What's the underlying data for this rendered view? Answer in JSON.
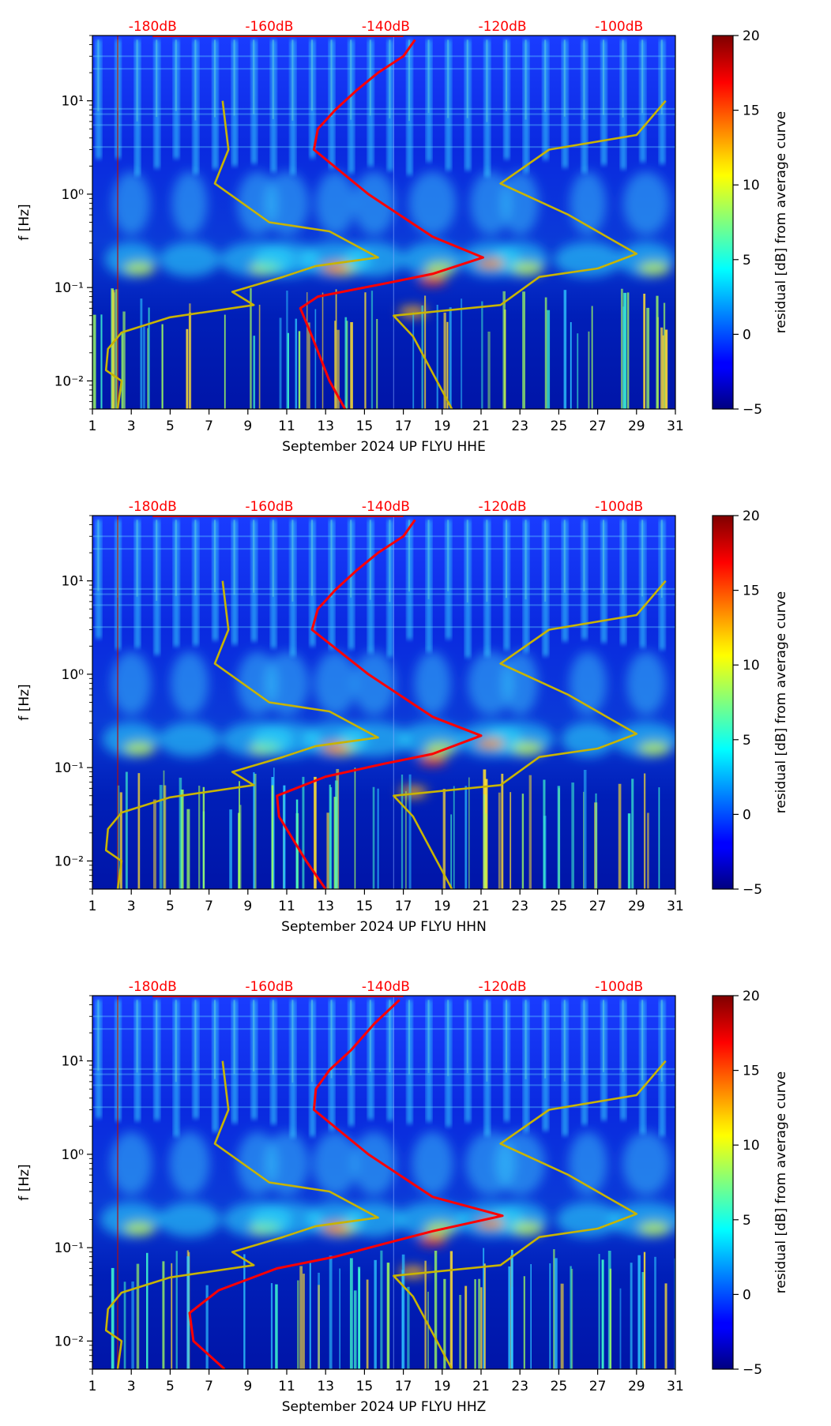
{
  "figure": {
    "colormap": "jet",
    "overlay_colors": {
      "noise_curve": "#ff0000",
      "model_curve": "#c8b400",
      "db_label": "#ff0000"
    }
  },
  "chart_data": [
    {
      "type": "heatmap",
      "xlabel": "September 2024 UP FLYU  HHE",
      "ylabel": "f [Hz]",
      "x_range": [
        1,
        31
      ],
      "x_ticks": [
        "1",
        "3",
        "5",
        "7",
        "9",
        "11",
        "13",
        "15",
        "17",
        "19",
        "21",
        "23",
        "25",
        "27",
        "29",
        "31"
      ],
      "y_scale": "log",
      "y_range": [
        0.005,
        50
      ],
      "y_ticks": [
        {
          "value": 0.01,
          "label": "10⁻²"
        },
        {
          "value": 0.1,
          "label": "10⁻¹"
        },
        {
          "value": 1,
          "label": "10⁰"
        },
        {
          "value": 10,
          "label": "10¹"
        }
      ],
      "db_scale": {
        "labels": [
          "-180dB",
          "-160dB",
          "-140dB",
          "-120dB",
          "-100dB"
        ],
        "day_positions": [
          4.1,
          10.1,
          16.1,
          22.1,
          28.1
        ]
      },
      "colorbar": {
        "label": "residual [dB] from average curve",
        "range": [
          -5,
          20
        ],
        "ticks": [
          -5,
          0,
          5,
          10,
          15,
          20
        ]
      },
      "series": [
        {
          "name": "noise curve",
          "color": "#ff0000",
          "points": [
            [
              14.0,
              0.005
            ],
            [
              13.2,
              0.01
            ],
            [
              12.3,
              0.03
            ],
            [
              11.7,
              0.06
            ],
            [
              12.6,
              0.08
            ],
            [
              16.0,
              0.11
            ],
            [
              18.5,
              0.14
            ],
            [
              21.1,
              0.21
            ],
            [
              18.5,
              0.35
            ],
            [
              15.2,
              1.0
            ],
            [
              12.4,
              3.0
            ],
            [
              12.6,
              5.0
            ],
            [
              13.5,
              8.0
            ],
            [
              14.6,
              13.0
            ],
            [
              15.7,
              20.0
            ],
            [
              17.0,
              30.0
            ],
            [
              17.6,
              45.0
            ]
          ]
        },
        {
          "name": "model curve",
          "color": "#c8b400",
          "points": [
            [
              7.7,
              10.0
            ],
            [
              8.0,
              3.0
            ],
            [
              7.3,
              1.3
            ],
            [
              10.1,
              0.5
            ],
            [
              13.2,
              0.4
            ],
            [
              15.7,
              0.21
            ],
            [
              12.5,
              0.17
            ],
            [
              10.8,
              0.13
            ],
            [
              8.2,
              0.09
            ],
            [
              9.3,
              0.065
            ],
            [
              5.0,
              0.048
            ],
            [
              2.5,
              0.033
            ],
            [
              1.8,
              0.022
            ],
            [
              1.7,
              0.013
            ],
            [
              2.5,
              0.01
            ],
            [
              2.3,
              0.005
            ]
          ]
        },
        {
          "name": "model curve 2",
          "color": "#c8b400",
          "points": [
            [
              30.5,
              10.0
            ],
            [
              29.0,
              4.3
            ],
            [
              24.5,
              3.0
            ],
            [
              22.0,
              1.3
            ],
            [
              25.5,
              0.6
            ],
            [
              29.0,
              0.23
            ],
            [
              27.0,
              0.16
            ],
            [
              24.0,
              0.13
            ],
            [
              22.0,
              0.065
            ],
            [
              16.5,
              0.05
            ],
            [
              17.5,
              0.03
            ],
            [
              19.5,
              0.005
            ]
          ]
        }
      ]
    },
    {
      "type": "heatmap",
      "xlabel": "September 2024 UP FLYU  HHN",
      "ylabel": "f [Hz]",
      "x_range": [
        1,
        31
      ],
      "x_ticks": [
        "1",
        "3",
        "5",
        "7",
        "9",
        "11",
        "13",
        "15",
        "17",
        "19",
        "21",
        "23",
        "25",
        "27",
        "29",
        "31"
      ],
      "y_scale": "log",
      "y_range": [
        0.005,
        50
      ],
      "y_ticks": [
        {
          "value": 0.01,
          "label": "10⁻²"
        },
        {
          "value": 0.1,
          "label": "10⁻¹"
        },
        {
          "value": 1,
          "label": "10⁰"
        },
        {
          "value": 10,
          "label": "10¹"
        }
      ],
      "db_scale": {
        "labels": [
          "-180dB",
          "-160dB",
          "-140dB",
          "-120dB",
          "-100dB"
        ],
        "day_positions": [
          4.1,
          10.1,
          16.1,
          22.1,
          28.1
        ]
      },
      "colorbar": {
        "label": "residual [dB] from average curve",
        "range": [
          -5,
          20
        ],
        "ticks": [
          -5,
          0,
          5,
          10,
          15,
          20
        ]
      },
      "series": [
        {
          "name": "noise curve",
          "color": "#ff0000",
          "points": [
            [
              13.0,
              0.005
            ],
            [
              12.0,
              0.01
            ],
            [
              10.6,
              0.03
            ],
            [
              10.5,
              0.05
            ],
            [
              13.0,
              0.08
            ],
            [
              16.0,
              0.11
            ],
            [
              18.5,
              0.14
            ],
            [
              21.0,
              0.22
            ],
            [
              18.5,
              0.35
            ],
            [
              15.2,
              1.0
            ],
            [
              12.3,
              3.0
            ],
            [
              12.6,
              5.0
            ],
            [
              13.5,
              8.0
            ],
            [
              14.6,
              13.0
            ],
            [
              15.7,
              20.0
            ],
            [
              17.0,
              30.0
            ],
            [
              17.6,
              45.0
            ]
          ]
        },
        {
          "name": "model curve",
          "color": "#c8b400",
          "points": [
            [
              7.7,
              10.0
            ],
            [
              8.0,
              3.0
            ],
            [
              7.3,
              1.3
            ],
            [
              10.1,
              0.5
            ],
            [
              13.2,
              0.4
            ],
            [
              15.7,
              0.21
            ],
            [
              12.5,
              0.17
            ],
            [
              10.8,
              0.13
            ],
            [
              8.2,
              0.09
            ],
            [
              9.3,
              0.065
            ],
            [
              5.0,
              0.048
            ],
            [
              2.5,
              0.033
            ],
            [
              1.8,
              0.022
            ],
            [
              1.7,
              0.013
            ],
            [
              2.5,
              0.01
            ],
            [
              2.3,
              0.005
            ]
          ]
        },
        {
          "name": "model curve 2",
          "color": "#c8b400",
          "points": [
            [
              30.5,
              10.0
            ],
            [
              29.0,
              4.3
            ],
            [
              24.5,
              3.0
            ],
            [
              22.0,
              1.3
            ],
            [
              25.5,
              0.6
            ],
            [
              29.0,
              0.23
            ],
            [
              27.0,
              0.16
            ],
            [
              24.0,
              0.13
            ],
            [
              22.0,
              0.065
            ],
            [
              16.5,
              0.05
            ],
            [
              17.5,
              0.03
            ],
            [
              19.5,
              0.005
            ]
          ]
        }
      ]
    },
    {
      "type": "heatmap",
      "xlabel": "September 2024 UP FLYU  HHZ",
      "ylabel": "f [Hz]",
      "x_range": [
        1,
        31
      ],
      "x_ticks": [
        "1",
        "3",
        "5",
        "7",
        "9",
        "11",
        "13",
        "15",
        "17",
        "19",
        "21",
        "23",
        "25",
        "27",
        "29",
        "31"
      ],
      "y_scale": "log",
      "y_range": [
        0.005,
        50
      ],
      "y_ticks": [
        {
          "value": 0.01,
          "label": "10⁻²"
        },
        {
          "value": 0.1,
          "label": "10⁻¹"
        },
        {
          "value": 1,
          "label": "10⁰"
        },
        {
          "value": 10,
          "label": "10¹"
        }
      ],
      "db_scale": {
        "labels": [
          "-180dB",
          "-160dB",
          "-140dB",
          "-120dB",
          "-100dB"
        ],
        "day_positions": [
          4.1,
          10.1,
          16.1,
          22.1,
          28.1
        ]
      },
      "colorbar": {
        "label": "residual [dB] from average curve",
        "range": [
          -5,
          20
        ],
        "ticks": [
          -5,
          0,
          5,
          10,
          15,
          20
        ]
      },
      "series": [
        {
          "name": "noise curve",
          "color": "#ff0000",
          "points": [
            [
              7.8,
              0.005
            ],
            [
              6.2,
              0.01
            ],
            [
              6.0,
              0.02
            ],
            [
              7.5,
              0.035
            ],
            [
              10.5,
              0.06
            ],
            [
              13.5,
              0.08
            ],
            [
              16.0,
              0.11
            ],
            [
              18.5,
              0.15
            ],
            [
              22.1,
              0.22
            ],
            [
              18.5,
              0.35
            ],
            [
              15.2,
              1.0
            ],
            [
              12.4,
              3.0
            ],
            [
              12.5,
              5.0
            ],
            [
              13.2,
              8.0
            ],
            [
              14.3,
              13.0
            ],
            [
              15.5,
              25.0
            ],
            [
              16.8,
              45.0
            ]
          ]
        },
        {
          "name": "model curve",
          "color": "#c8b400",
          "points": [
            [
              7.7,
              10.0
            ],
            [
              8.0,
              3.0
            ],
            [
              7.3,
              1.3
            ],
            [
              10.1,
              0.5
            ],
            [
              13.2,
              0.4
            ],
            [
              15.7,
              0.21
            ],
            [
              12.5,
              0.17
            ],
            [
              10.8,
              0.13
            ],
            [
              8.2,
              0.09
            ],
            [
              9.3,
              0.065
            ],
            [
              5.0,
              0.048
            ],
            [
              2.5,
              0.033
            ],
            [
              1.8,
              0.022
            ],
            [
              1.7,
              0.013
            ],
            [
              2.5,
              0.01
            ],
            [
              2.3,
              0.005
            ]
          ]
        },
        {
          "name": "model curve 2",
          "color": "#c8b400",
          "points": [
            [
              30.5,
              10.0
            ],
            [
              29.0,
              4.3
            ],
            [
              24.5,
              3.0
            ],
            [
              22.0,
              1.3
            ],
            [
              25.5,
              0.6
            ],
            [
              29.0,
              0.23
            ],
            [
              27.0,
              0.16
            ],
            [
              24.0,
              0.13
            ],
            [
              22.0,
              0.065
            ],
            [
              16.5,
              0.05
            ],
            [
              17.5,
              0.03
            ],
            [
              19.5,
              0.005
            ]
          ]
        }
      ]
    }
  ]
}
